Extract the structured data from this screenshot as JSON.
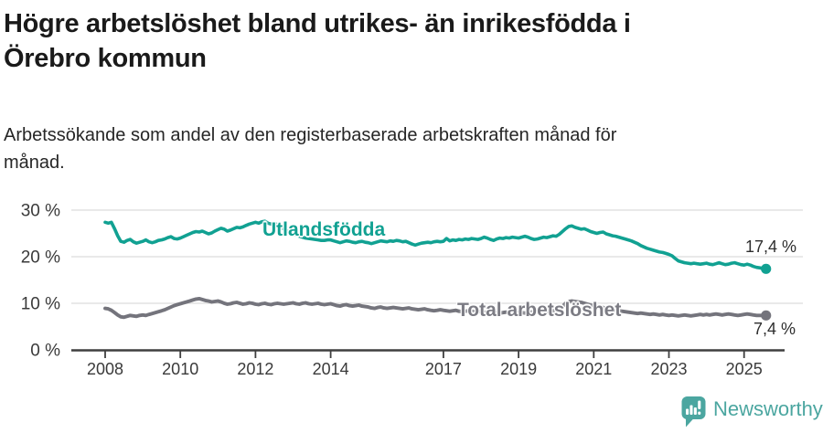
{
  "header": {
    "title": "Högre arbetslöshet bland utrikes- än inrikesfödda i Örebro kommun",
    "title_lines": [
      "Högre arbetslöshet bland utrikes- än inrikesfödda i",
      "Örebro kommun"
    ],
    "subtitle": "Arbetssökande som andel av den registerbaserade arbetskraften månad för månad.",
    "subtitle_lines": [
      "Arbetssökande som andel av den registerbaserade arbetskraften månad för",
      "månad."
    ]
  },
  "chart_data": {
    "type": "line",
    "title": "Högre arbetslöshet bland utrikes- än inrikesfödda i Örebro kommun",
    "xlabel": "",
    "ylabel": "",
    "unit": "%",
    "ylim": [
      0,
      30
    ],
    "x_range": [
      2008.0,
      2025.67
    ],
    "frequency": "monthly",
    "start_month": "2008-01",
    "end_month": "2025-08",
    "grid": "horizontal",
    "legend_position": "inline-labels",
    "y_ticks": [
      {
        "value": 30,
        "label": "30 %"
      },
      {
        "value": 20,
        "label": "20 %"
      },
      {
        "value": 10,
        "label": "10 %"
      },
      {
        "value": 0,
        "label": "0 %"
      }
    ],
    "x_ticks": [
      {
        "value": 2008,
        "label": "2008"
      },
      {
        "value": 2010,
        "label": "2010"
      },
      {
        "value": 2012,
        "label": "2012"
      },
      {
        "value": 2014,
        "label": "2014"
      },
      {
        "value": 2017,
        "label": "2017"
      },
      {
        "value": 2019,
        "label": "2019"
      },
      {
        "value": 2021,
        "label": "2021"
      },
      {
        "value": 2023,
        "label": "2023"
      },
      {
        "value": 2025,
        "label": "2025"
      }
    ],
    "series": [
      {
        "name": "Utlandsfödda",
        "color": "#11a192",
        "end_label": "17,4 %",
        "end_value": 17.4,
        "values": [
          27.4,
          27.2,
          27.4,
          26.0,
          24.5,
          23.3,
          23.1,
          23.5,
          23.7,
          23.2,
          22.9,
          23.1,
          23.3,
          23.6,
          23.2,
          23.0,
          23.2,
          23.5,
          23.6,
          23.8,
          24.1,
          24.3,
          23.9,
          23.8,
          24.0,
          24.3,
          24.6,
          24.9,
          25.2,
          25.4,
          25.3,
          25.5,
          25.2,
          24.9,
          25.1,
          25.5,
          25.8,
          26.1,
          25.9,
          25.5,
          25.7,
          26.0,
          26.3,
          26.2,
          26.4,
          26.7,
          27.0,
          27.2,
          27.4,
          27.2,
          27.5,
          27.6,
          27.2,
          27.0,
          27.2,
          26.8,
          26.4,
          26.0,
          25.6,
          25.2,
          24.9,
          24.6,
          24.4,
          24.2,
          24.0,
          23.9,
          23.8,
          23.7,
          23.6,
          23.5,
          23.5,
          23.6,
          23.6,
          23.4,
          23.2,
          23.0,
          23.2,
          23.4,
          23.3,
          23.1,
          23.0,
          23.2,
          23.3,
          23.1,
          23.0,
          22.8,
          23.0,
          23.2,
          23.4,
          23.3,
          23.2,
          23.4,
          23.3,
          23.5,
          23.4,
          23.2,
          23.3,
          23.0,
          22.7,
          22.5,
          22.7,
          22.9,
          23.0,
          23.1,
          23.0,
          23.2,
          23.3,
          23.2,
          23.3,
          23.9,
          23.4,
          23.6,
          23.5,
          23.7,
          23.6,
          23.8,
          23.7,
          23.9,
          23.8,
          23.7,
          23.9,
          24.2,
          24.0,
          23.7,
          23.5,
          23.8,
          24.0,
          23.9,
          24.1,
          24.0,
          24.2,
          24.1,
          24.0,
          24.2,
          24.4,
          24.2,
          23.9,
          23.7,
          23.8,
          24.0,
          24.2,
          24.1,
          24.3,
          24.5,
          24.4,
          24.8,
          25.4,
          26.0,
          26.5,
          26.6,
          26.3,
          26.1,
          25.9,
          26.0,
          25.7,
          25.4,
          25.2,
          25.0,
          25.2,
          25.3,
          24.9,
          24.7,
          24.5,
          24.4,
          24.2,
          24.0,
          23.8,
          23.6,
          23.4,
          23.1,
          22.8,
          22.4,
          22.1,
          21.8,
          21.6,
          21.4,
          21.2,
          21.0,
          20.9,
          20.7,
          20.5,
          20.2,
          19.6,
          19.1,
          18.9,
          18.7,
          18.6,
          18.5,
          18.6,
          18.5,
          18.4,
          18.5,
          18.6,
          18.4,
          18.3,
          18.5,
          18.7,
          18.5,
          18.3,
          18.4,
          18.6,
          18.7,
          18.5,
          18.3,
          18.2,
          18.4,
          18.2,
          17.9,
          17.7,
          17.6,
          17.5,
          17.4
        ]
      },
      {
        "name": "Total arbetslöshet",
        "color": "#74747c",
        "end_label": "7,4 %",
        "end_value": 7.4,
        "values": [
          8.9,
          8.8,
          8.5,
          8.0,
          7.5,
          7.1,
          7.0,
          7.2,
          7.4,
          7.3,
          7.2,
          7.4,
          7.5,
          7.4,
          7.6,
          7.8,
          8.0,
          8.2,
          8.4,
          8.6,
          8.9,
          9.2,
          9.5,
          9.7,
          9.9,
          10.1,
          10.3,
          10.5,
          10.7,
          10.9,
          11.0,
          10.8,
          10.6,
          10.5,
          10.3,
          10.4,
          10.5,
          10.3,
          10.0,
          9.8,
          9.9,
          10.1,
          10.2,
          10.0,
          9.8,
          9.9,
          10.1,
          10.0,
          9.8,
          9.7,
          9.9,
          10.0,
          9.8,
          9.7,
          9.9,
          10.0,
          9.9,
          9.8,
          9.9,
          10.0,
          10.1,
          9.9,
          9.8,
          10.0,
          10.1,
          9.9,
          9.8,
          9.9,
          10.0,
          9.8,
          9.7,
          9.8,
          9.9,
          9.7,
          9.5,
          9.4,
          9.6,
          9.7,
          9.5,
          9.4,
          9.5,
          9.6,
          9.4,
          9.3,
          9.2,
          9.0,
          8.9,
          9.1,
          9.2,
          9.0,
          8.9,
          9.0,
          9.1,
          9.0,
          8.9,
          8.8,
          8.9,
          9.0,
          8.8,
          8.7,
          8.6,
          8.7,
          8.8,
          8.6,
          8.5,
          8.4,
          8.5,
          8.6,
          8.5,
          8.4,
          8.3,
          8.4,
          8.5,
          8.3,
          8.2,
          8.3,
          8.4,
          8.3,
          8.2,
          8.3,
          8.2,
          8.1,
          8.0,
          8.1,
          8.2,
          8.0,
          7.9,
          8.0,
          8.1,
          8.0,
          7.9,
          8.0,
          8.1,
          8.0,
          7.9,
          8.0,
          8.1,
          8.2,
          8.1,
          8.0,
          8.1,
          8.2,
          8.3,
          8.4,
          8.5,
          8.7,
          9.3,
          10.0,
          10.4,
          10.5,
          10.4,
          10.3,
          10.2,
          10.0,
          9.8,
          9.6,
          9.5,
          9.4,
          9.3,
          9.1,
          8.9,
          8.7,
          8.6,
          8.5,
          8.4,
          8.3,
          8.2,
          8.1,
          8.0,
          7.9,
          7.8,
          7.9,
          7.8,
          7.7,
          7.6,
          7.7,
          7.6,
          7.5,
          7.6,
          7.5,
          7.4,
          7.5,
          7.4,
          7.3,
          7.4,
          7.5,
          7.4,
          7.3,
          7.4,
          7.5,
          7.6,
          7.5,
          7.6,
          7.5,
          7.6,
          7.7,
          7.6,
          7.5,
          7.6,
          7.7,
          7.6,
          7.5,
          7.4,
          7.5,
          7.6,
          7.7,
          7.6,
          7.5,
          7.4,
          7.4,
          7.4,
          7.4
        ]
      }
    ]
  },
  "footer": {
    "brand": "Newsworthy",
    "icon": "newsworthy-barchart-bubble-icon",
    "brand_color": "#4ba6a0"
  },
  "colors": {
    "background": "#ffffff",
    "title": "#1a1a1a",
    "subtitle": "#262626",
    "grid": "#e2e2e2",
    "axis": "#3f3f3f",
    "tick_text": "#3a3a3a",
    "value_label": "#2e2e2e",
    "series_teal": "#11a192",
    "series_gray": "#74747c"
  }
}
